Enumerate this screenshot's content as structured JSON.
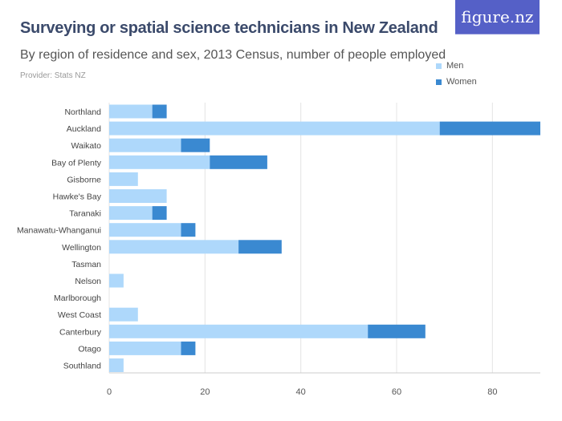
{
  "header": {
    "title": "Surveying or spatial science technicians in New Zealand",
    "subtitle": "By region of residence and sex, 2013 Census, number of people employed",
    "provider": "Provider: Stats NZ",
    "logo": "figure.nz"
  },
  "chart_data": {
    "type": "bar",
    "orientation": "horizontal",
    "stacked": true,
    "title": "Surveying or spatial science technicians in New Zealand",
    "subtitle": "By region of residence and sex, 2013 Census, number of people employed",
    "categories": [
      "Northland",
      "Auckland",
      "Waikato",
      "Bay of Plenty",
      "Gisborne",
      "Hawke's Bay",
      "Taranaki",
      "Manawatu-Whanganui",
      "Wellington",
      "Tasman",
      "Nelson",
      "Marlborough",
      "West Coast",
      "Canterbury",
      "Otago",
      "Southland"
    ],
    "series": [
      {
        "name": "Men",
        "color": "#aed8fb",
        "values": [
          9,
          69,
          15,
          21,
          6,
          12,
          9,
          15,
          27,
          0,
          3,
          0,
          6,
          54,
          15,
          3
        ]
      },
      {
        "name": "Women",
        "color": "#3a89d1",
        "values": [
          3,
          21,
          6,
          12,
          0,
          0,
          3,
          3,
          9,
          0,
          0,
          0,
          0,
          12,
          3,
          0
        ]
      }
    ],
    "xlim": [
      0,
      90
    ],
    "xticks": [
      0,
      20,
      40,
      60,
      80
    ],
    "grid": true,
    "legend": "top-right"
  }
}
